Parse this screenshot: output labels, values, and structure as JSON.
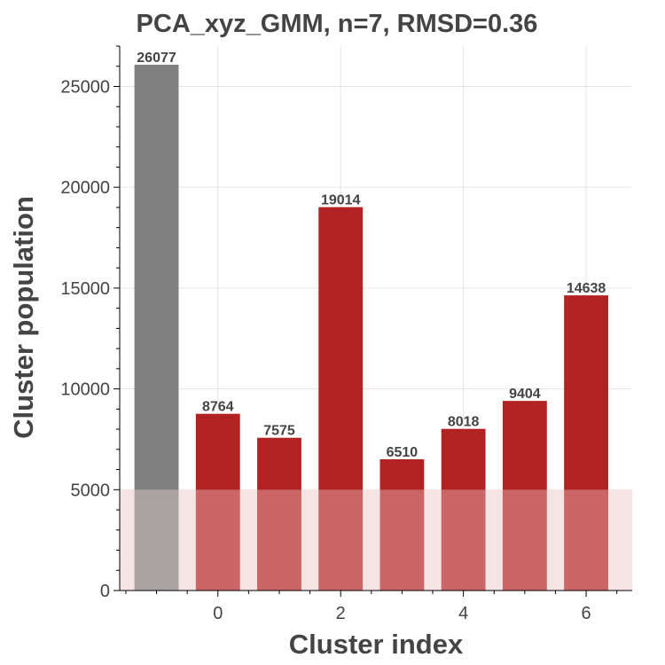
{
  "chart_data": {
    "type": "bar",
    "title": "PCA_xyz_GMM, n=7, RMSD=0.36",
    "xlabel": "Cluster index",
    "ylabel": "Cluster population",
    "x": [
      -1,
      0,
      1,
      2,
      3,
      4,
      5,
      6
    ],
    "values": [
      26077,
      8764,
      7575,
      19014,
      6510,
      8018,
      9404,
      14638
    ],
    "data_labels": [
      "26077",
      "8764",
      "7575",
      "19014",
      "6510",
      "8018",
      "9404",
      "14638"
    ],
    "bar_colors": [
      "#808080",
      "#b22222",
      "#b22222",
      "#b22222",
      "#b22222",
      "#b22222",
      "#b22222",
      "#b22222"
    ],
    "xticks": [
      0,
      2,
      4,
      6
    ],
    "xtick_labels": [
      "0",
      "2",
      "4",
      "6"
    ],
    "yticks": [
      0,
      5000,
      10000,
      15000,
      20000,
      25000
    ],
    "ytick_labels": [
      "0",
      "5000",
      "10000",
      "15000",
      "20000",
      "25000"
    ],
    "xlim": [
      -1.6,
      6.75
    ],
    "ylim": [
      0,
      27000
    ],
    "threshold_band": {
      "from": 0,
      "to": 5000,
      "color": "#f5e4e4"
    },
    "grid": true
  }
}
